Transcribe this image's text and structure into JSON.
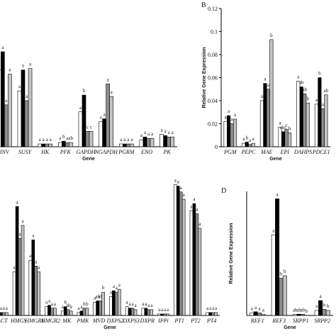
{
  "chart_data": [
    {
      "type": "bar",
      "x_label": "Gene",
      "categories": [
        "INV",
        "SUSY",
        "HK",
        "PFK",
        "GAPDH",
        "NGAPDH",
        "PGRM",
        "ENO",
        "PK"
      ],
      "ylim": [
        0,
        1
      ],
      "series": [
        {
          "color": "#ffffff",
          "values": [
            0.55,
            0.4,
            0.02,
            0.03,
            0.25,
            0.18,
            0.02,
            0.05,
            0.09
          ],
          "letters": [
            "a",
            "a",
            "a",
            "a",
            "a",
            "a",
            "a",
            "a",
            "a"
          ]
        },
        {
          "color": "#000000",
          "values": [
            0.68,
            0.55,
            0.02,
            0.04,
            0.37,
            0.2,
            0.02,
            0.07,
            0.08
          ],
          "letters": [
            "a",
            "a",
            "a",
            "b",
            "b",
            "a",
            "a",
            "a",
            "a"
          ]
        },
        {
          "color": "#8c8c8c",
          "values": [
            0.3,
            0.33,
            0.02,
            0.03,
            0.11,
            0.45,
            0.02,
            0.06,
            0.07
          ],
          "letters": [
            "a",
            "a",
            "a",
            "a",
            "c",
            "a",
            "a",
            "a",
            "a"
          ]
        },
        {
          "color": "#c4c4c4",
          "values": [
            0.52,
            0.56,
            0.02,
            0.03,
            0.11,
            0.36,
            0.02,
            0.06,
            0.07
          ],
          "letters": [
            "a",
            "a",
            "a",
            "ab",
            "c",
            "a",
            "a",
            "a",
            "a"
          ]
        }
      ]
    },
    {
      "type": "bar",
      "panel": "B",
      "x_label": "Gene",
      "y_label": "Relative Gene Expression",
      "categories": [
        "PGM",
        "PEPC",
        "MAE",
        "EPI",
        "DAHPS",
        "PDCE1"
      ],
      "ylim": [
        0,
        0.12
      ],
      "yticks": [
        0,
        0.02,
        0.04,
        0.06,
        0.08,
        0.1,
        0.12
      ],
      "series": [
        {
          "color": "#ffffff",
          "values": [
            0.022,
            0.003,
            0.04,
            0.017,
            0.057,
            0.037
          ],
          "letters": [
            "a",
            "a",
            "a",
            "a",
            "a",
            "a"
          ]
        },
        {
          "color": "#000000",
          "values": [
            0.027,
            0.004,
            0.055,
            0.013,
            0.052,
            0.06
          ],
          "letters": [
            "a",
            "b",
            "a",
            "abc",
            "ab",
            "b"
          ]
        },
        {
          "color": "#8c8c8c",
          "values": [
            0.02,
            0.002,
            0.05,
            0.015,
            0.046,
            0.033
          ],
          "letters": [
            "a",
            "a",
            "a",
            "c",
            "ab",
            "a"
          ]
        },
        {
          "color": "#c4c4c4",
          "values": [
            0.024,
            0.003,
            0.093,
            0.012,
            0.038,
            0.045
          ],
          "letters": [
            "a",
            "a",
            "b",
            "b",
            "b",
            "ab"
          ]
        }
      ]
    },
    {
      "type": "bar",
      "x_label": "Gene",
      "categories": [
        "ACT",
        "HMGS",
        "HMGR1",
        "HMGR2",
        "MK",
        "PMK",
        "MVD",
        "DXPS2",
        "DXPS3",
        "DXPR",
        "IPPi",
        "PT1",
        "PT2",
        "PT4"
      ],
      "ylim": [
        0,
        1
      ],
      "series": [
        {
          "color": "#ffffff",
          "values": [
            0.02,
            0.3,
            0.38,
            0.06,
            0.03,
            0.02,
            0.09,
            0.13,
            0.06,
            0.05,
            0.01,
            0.9,
            0.72,
            0.02
          ],
          "letters": [
            "a",
            "a",
            "a",
            "a",
            "a",
            "a",
            "a",
            "a",
            "a",
            "a",
            "a",
            "a",
            "a",
            "a"
          ]
        },
        {
          "color": "#000000",
          "values": [
            0.02,
            0.75,
            0.52,
            0.07,
            0.06,
            0.03,
            0.1,
            0.17,
            0.05,
            0.05,
            0.01,
            0.89,
            0.77,
            0.02
          ],
          "letters": [
            "a",
            "a",
            "a",
            "a",
            "b",
            "a",
            "ab",
            "a",
            "a",
            "a",
            "a",
            "a",
            "a",
            "a"
          ]
        },
        {
          "color": "#8c8c8c",
          "values": [
            0.02,
            0.53,
            0.34,
            0.05,
            0.04,
            0.05,
            0.1,
            0.16,
            0.05,
            0.04,
            0.01,
            0.85,
            0.7,
            0.02
          ],
          "letters": [
            "a",
            "a",
            "a",
            "a",
            "ab",
            "b",
            "ab",
            "a",
            "a",
            "a",
            "a",
            "a",
            "a",
            "a"
          ]
        },
        {
          "color": "#c4c4c4",
          "values": [
            0.02,
            0.62,
            0.3,
            0.05,
            0.03,
            0.05,
            0.16,
            0.18,
            0.04,
            0.04,
            0.01,
            0.8,
            0.6,
            0.02
          ],
          "letters": [
            "a",
            "a",
            "a",
            "a",
            "a",
            "b",
            "b",
            "a",
            "a",
            "a",
            "a",
            "a",
            "a",
            "a"
          ]
        }
      ]
    },
    {
      "type": "bar",
      "panel": "D",
      "x_label": "Gene",
      "y_label": "Relative Gene Expression",
      "categories": [
        "REF1",
        "REF3",
        "SRPP1",
        "SRPP2"
      ],
      "ylim": [
        0,
        100
      ],
      "series": [
        {
          "color": "#ffffff",
          "values": [
            2,
            65,
            1,
            4
          ],
          "letters": [
            "a",
            "a",
            "ab",
            "a"
          ]
        },
        {
          "color": "#000000",
          "values": [
            3,
            94,
            1,
            12
          ],
          "letters": [
            "a",
            "a",
            "ab",
            "a"
          ]
        },
        {
          "color": "#8c8c8c",
          "values": [
            2,
            30,
            1,
            5
          ],
          "letters": [
            "a",
            "b",
            "ab",
            "b"
          ]
        },
        {
          "color": "#c4c4c4",
          "values": [
            1,
            32,
            0,
            4
          ],
          "letters": [
            "a",
            "b",
            "b",
            "b"
          ]
        }
      ]
    }
  ]
}
